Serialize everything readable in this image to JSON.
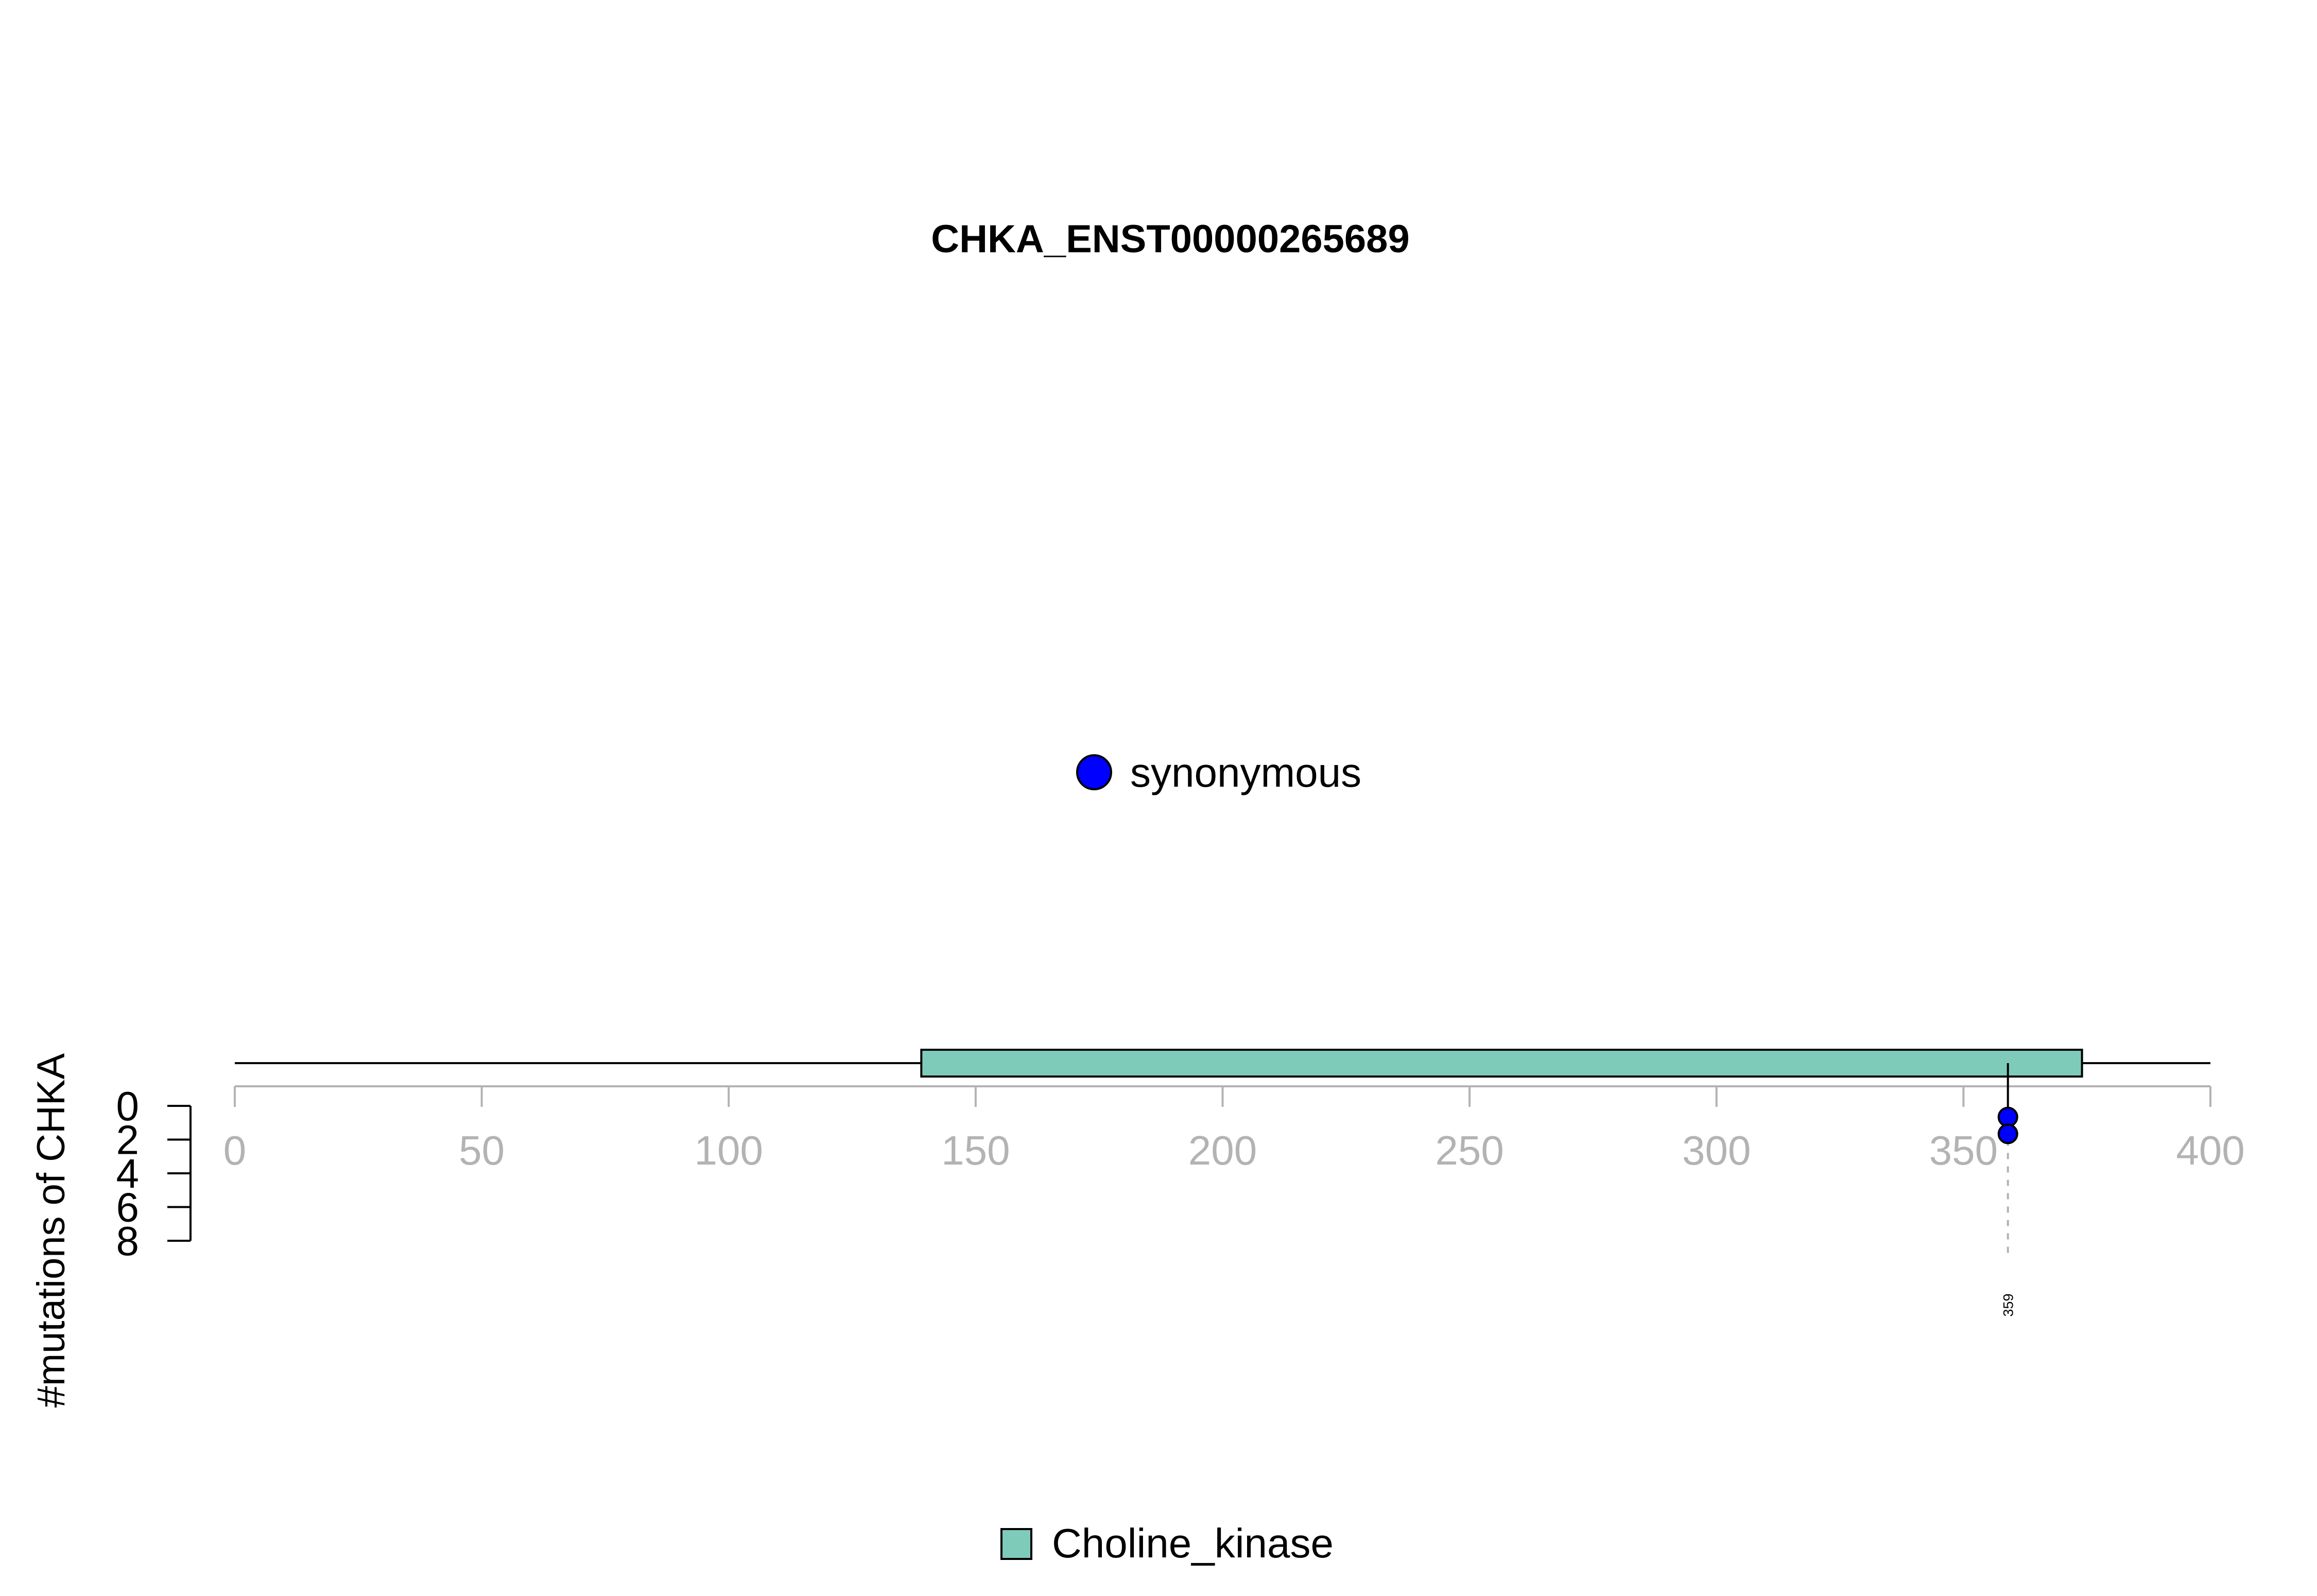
{
  "chart_data": {
    "type": "scatter",
    "subtype": "lollipop",
    "title": "CHKA_ENST00000265689",
    "ylabel": "#mutations of CHKA",
    "xlim": [
      0,
      400
    ],
    "x_ticks": [
      0,
      50,
      100,
      150,
      200,
      250,
      300,
      350,
      400
    ],
    "y_ticks": [
      0,
      2,
      4,
      6,
      8
    ],
    "ylim": [
      0,
      8
    ],
    "y_direction": "down",
    "protein_length": 400,
    "domains": [
      {
        "name": "Choline_kinase",
        "start": 139,
        "end": 374
      }
    ],
    "mutations": [
      {
        "position": 359,
        "count": 2,
        "type": "synonymous",
        "label": "359"
      }
    ],
    "mutation_legend": [
      {
        "label": "synonymous",
        "color": "#0000ff"
      }
    ],
    "domain_legend": [
      {
        "label": "Choline_kinase",
        "color": "#7fcbba"
      }
    ],
    "colors": {
      "synonymous": "#0000ff",
      "Choline_kinase": "#7fcbba",
      "axis_x": "#b3b3b3",
      "axis_y": "#000000"
    },
    "grid": false
  }
}
